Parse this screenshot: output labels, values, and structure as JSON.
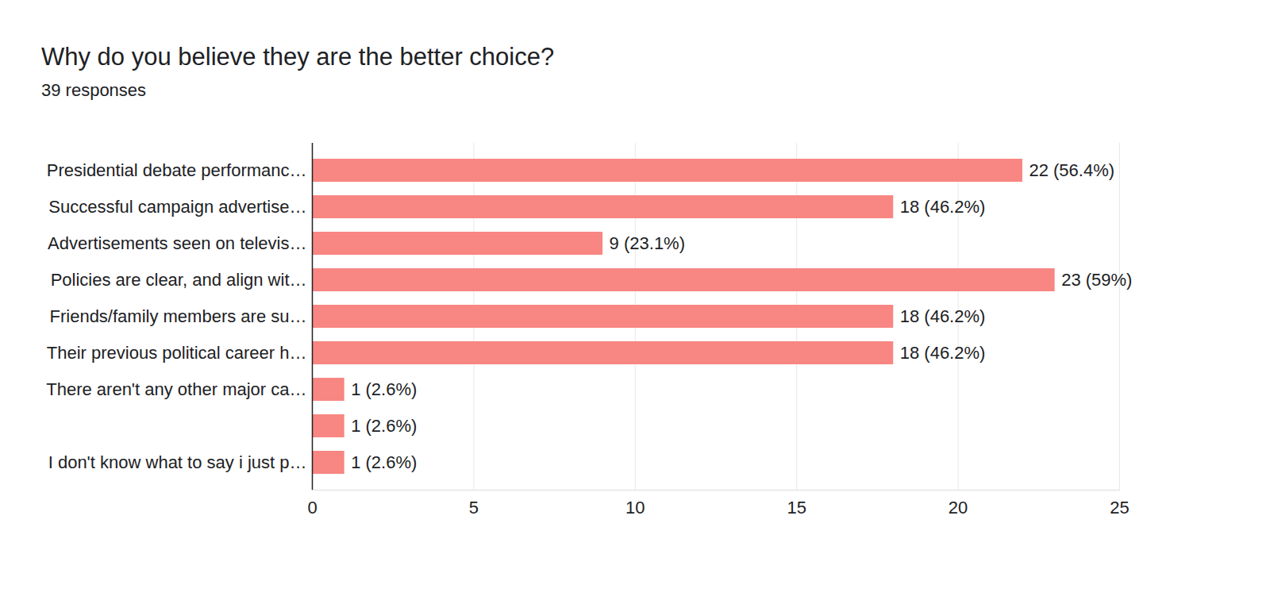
{
  "chart_data": {
    "type": "bar",
    "orientation": "horizontal",
    "title": "Why do you believe they are the better choice?",
    "subtitle": "39 responses",
    "categories": [
      "Presidential debate performanc…",
      "Successful campaign advertise…",
      "Advertisements seen on televis…",
      "Policies are clear, and align wit…",
      "Friends/family members are su…",
      "Their previous political career h…",
      "There aren't any other major ca…",
      null,
      "I don't know what to say i just p…"
    ],
    "values": [
      22,
      18,
      9,
      23,
      18,
      18,
      1,
      1,
      1
    ],
    "value_labels": [
      "22 (56.4%)",
      "18 (46.2%)",
      "9 (23.1%)",
      "23 (59%)",
      "18 (46.2%)",
      "18 (46.2%)",
      "1 (2.6%)",
      "1 (2.6%)",
      "1 (2.6%)"
    ],
    "data_labels": true,
    "color": "#f88682",
    "xlim": [
      0,
      25
    ],
    "xticks": [
      0,
      5,
      10,
      15,
      20,
      25
    ],
    "grid": true
  }
}
